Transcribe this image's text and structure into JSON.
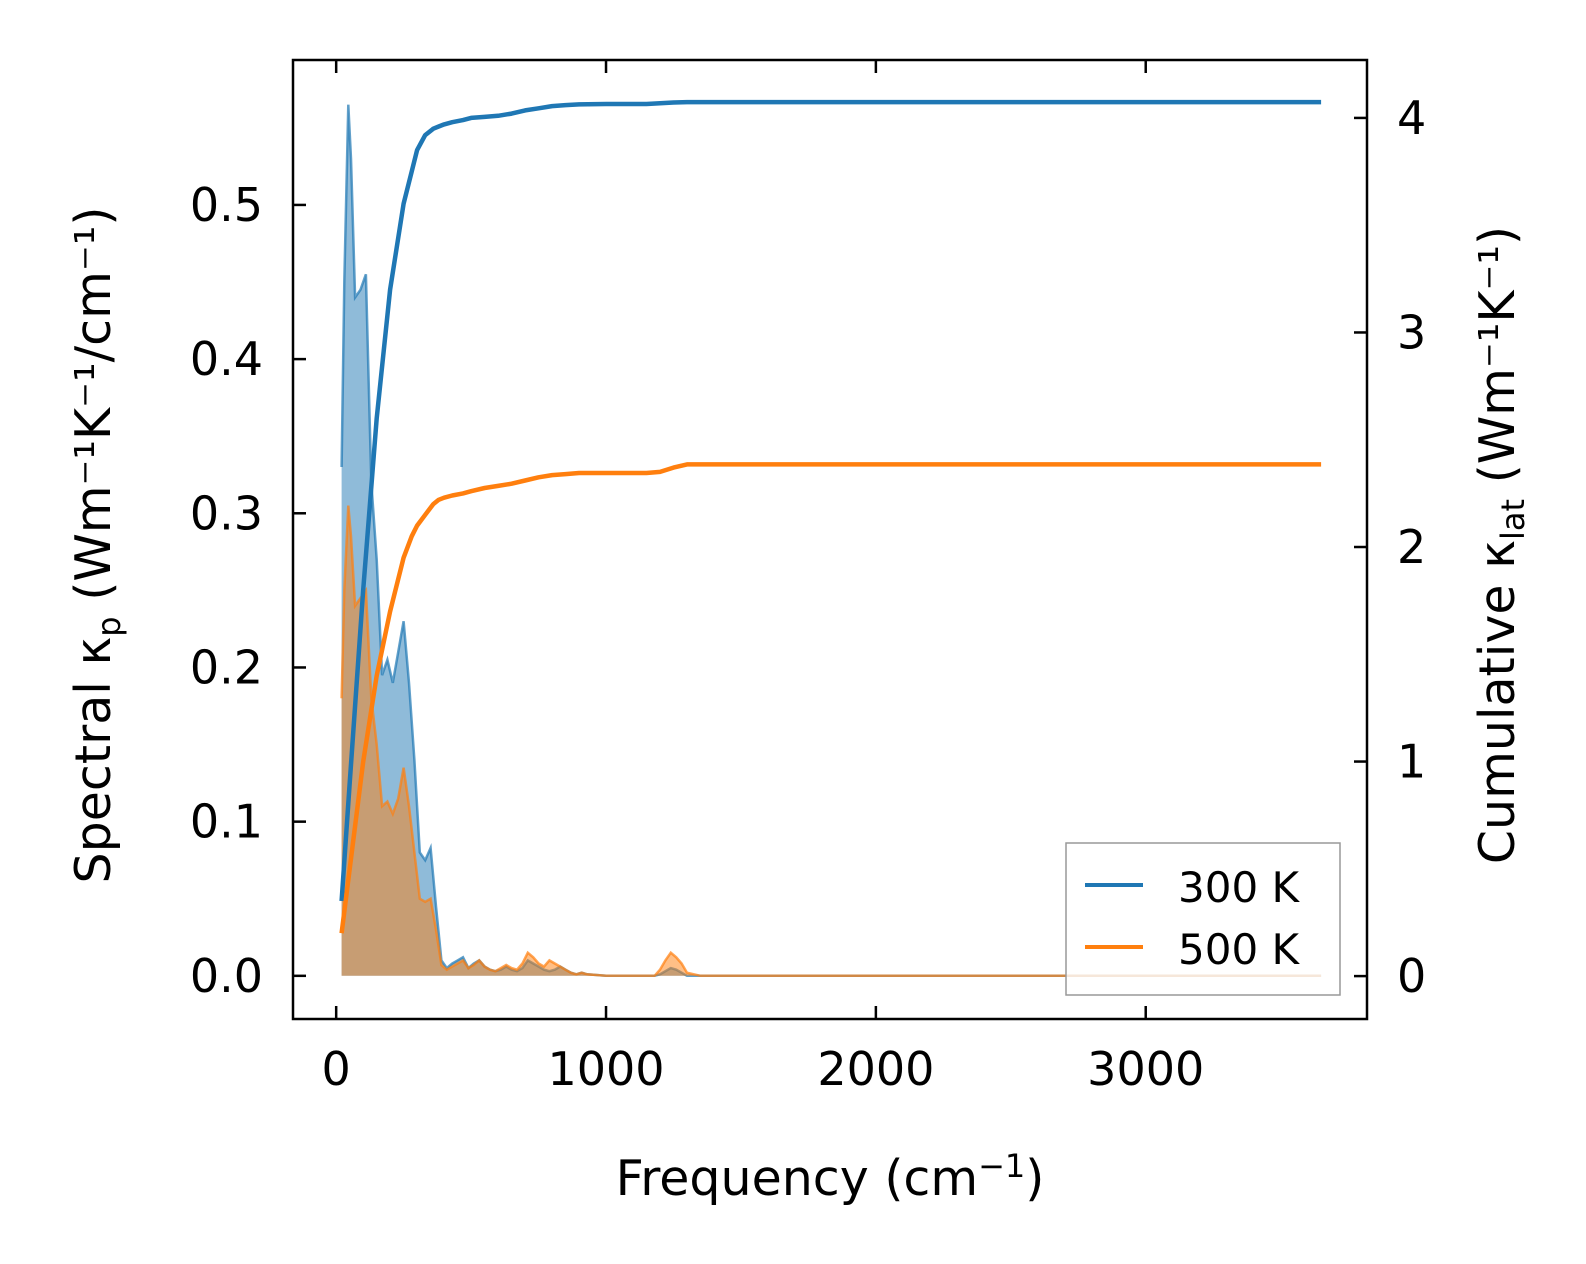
{
  "chart_data": {
    "type": "line",
    "x_axis": {
      "label": "Frequency",
      "label_unit_prefix": "(cm",
      "label_unit_sup": "−1",
      "label_unit_suffix": ")",
      "range": [
        -160,
        3820
      ],
      "ticks": [
        0,
        1000,
        2000,
        3000
      ],
      "tick_labels": [
        "0",
        "1000",
        "2000",
        "3000"
      ]
    },
    "y_left": {
      "label": "Spectral κ",
      "label_sub": "p",
      "label_unit": "(Wm⁻¹K⁻¹/cm⁻¹)",
      "range": [
        -0.028,
        0.594
      ],
      "ticks": [
        0.0,
        0.1,
        0.2,
        0.3,
        0.4,
        0.5
      ],
      "tick_labels": [
        "0.0",
        "0.1",
        "0.2",
        "0.3",
        "0.4",
        "0.5"
      ]
    },
    "y_right": {
      "label": "Cumulative κ",
      "label_sub": "lat",
      "label_unit": "(Wm⁻¹K⁻¹)",
      "range": [
        -0.2,
        4.27
      ],
      "ticks": [
        0,
        1,
        2,
        3,
        4
      ],
      "tick_labels": [
        "0",
        "1",
        "2",
        "3",
        "4"
      ]
    },
    "legend": {
      "position": "lower-right",
      "entries": [
        {
          "label": "300 K",
          "color": "#1f77b4"
        },
        {
          "label": "500 K",
          "color": "#ff7f0e"
        }
      ]
    },
    "series": [
      {
        "name": "300 K",
        "color": "#1f77b4",
        "spectral": {
          "x": [
            20,
            30,
            45,
            55,
            70,
            90,
            110,
            130,
            150,
            170,
            190,
            210,
            230,
            250,
            270,
            290,
            310,
            330,
            350,
            370,
            390,
            410,
            430,
            450,
            470,
            490,
            510,
            530,
            550,
            570,
            590,
            610,
            630,
            650,
            670,
            690,
            710,
            730,
            750,
            770,
            790,
            810,
            830,
            850,
            870,
            890,
            910,
            930,
            1000,
            1100,
            1180,
            1200,
            1220,
            1240,
            1260,
            1280,
            1300,
            1350,
            2000,
            3000,
            3650
          ],
          "y": [
            0.33,
            0.45,
            0.565,
            0.53,
            0.44,
            0.445,
            0.455,
            0.32,
            0.27,
            0.195,
            0.205,
            0.19,
            0.21,
            0.23,
            0.19,
            0.14,
            0.08,
            0.075,
            0.083,
            0.045,
            0.01,
            0.005,
            0.008,
            0.01,
            0.012,
            0.005,
            0.008,
            0.01,
            0.006,
            0.004,
            0.003,
            0.004,
            0.006,
            0.004,
            0.003,
            0.005,
            0.01,
            0.008,
            0.006,
            0.004,
            0.003,
            0.004,
            0.006,
            0.004,
            0.002,
            0.001,
            0.002,
            0.001,
            0.0,
            0.0,
            0.0,
            0.001,
            0.003,
            0.005,
            0.004,
            0.002,
            0.0,
            0.0,
            0.0,
            0.0,
            0.0
          ]
        },
        "cumulative": {
          "x": [
            20,
            50,
            100,
            150,
            200,
            250,
            280,
            300,
            330,
            360,
            380,
            400,
            430,
            470,
            500,
            550,
            600,
            650,
            700,
            750,
            800,
            850,
            900,
            1000,
            1150,
            1200,
            1250,
            1300,
            1500,
            2000,
            3000,
            3650
          ],
          "y": [
            0.35,
            0.9,
            1.8,
            2.6,
            3.2,
            3.6,
            3.75,
            3.85,
            3.92,
            3.95,
            3.96,
            3.97,
            3.98,
            3.99,
            4.0,
            4.005,
            4.01,
            4.02,
            4.035,
            4.045,
            4.055,
            4.06,
            4.063,
            4.065,
            4.065,
            4.068,
            4.072,
            4.074,
            4.074,
            4.074,
            4.074,
            4.074
          ]
        }
      },
      {
        "name": "500 K",
        "color": "#ff7f0e",
        "spectral": {
          "x": [
            20,
            30,
            45,
            55,
            70,
            90,
            110,
            130,
            150,
            170,
            190,
            210,
            230,
            250,
            270,
            290,
            310,
            330,
            350,
            370,
            390,
            410,
            430,
            450,
            470,
            490,
            510,
            530,
            550,
            570,
            590,
            610,
            630,
            650,
            670,
            690,
            710,
            730,
            750,
            770,
            790,
            810,
            830,
            850,
            870,
            890,
            910,
            930,
            1000,
            1100,
            1180,
            1200,
            1220,
            1240,
            1260,
            1280,
            1300,
            1350,
            2000,
            3000,
            3650
          ],
          "y": [
            0.18,
            0.25,
            0.305,
            0.285,
            0.24,
            0.245,
            0.25,
            0.18,
            0.15,
            0.11,
            0.113,
            0.105,
            0.115,
            0.135,
            0.11,
            0.08,
            0.05,
            0.048,
            0.05,
            0.03,
            0.007,
            0.004,
            0.006,
            0.008,
            0.01,
            0.005,
            0.007,
            0.01,
            0.006,
            0.004,
            0.003,
            0.005,
            0.007,
            0.005,
            0.004,
            0.008,
            0.015,
            0.012,
            0.008,
            0.006,
            0.01,
            0.008,
            0.006,
            0.004,
            0.002,
            0.001,
            0.002,
            0.001,
            0.0,
            0.0,
            0.0,
            0.004,
            0.01,
            0.015,
            0.012,
            0.008,
            0.002,
            0.0,
            0.0,
            0.0,
            0.0
          ]
        },
        "cumulative": {
          "x": [
            20,
            50,
            100,
            150,
            200,
            250,
            280,
            300,
            330,
            360,
            380,
            400,
            430,
            470,
            500,
            550,
            600,
            650,
            700,
            750,
            800,
            850,
            900,
            1000,
            1150,
            1200,
            1250,
            1300,
            1500,
            2000,
            3000,
            3650
          ],
          "y": [
            0.2,
            0.5,
            1.0,
            1.4,
            1.7,
            1.95,
            2.05,
            2.1,
            2.15,
            2.2,
            2.22,
            2.23,
            2.24,
            2.25,
            2.26,
            2.275,
            2.285,
            2.295,
            2.31,
            2.325,
            2.335,
            2.34,
            2.345,
            2.345,
            2.345,
            2.35,
            2.37,
            2.385,
            2.385,
            2.385,
            2.385,
            2.385
          ]
        }
      }
    ]
  }
}
